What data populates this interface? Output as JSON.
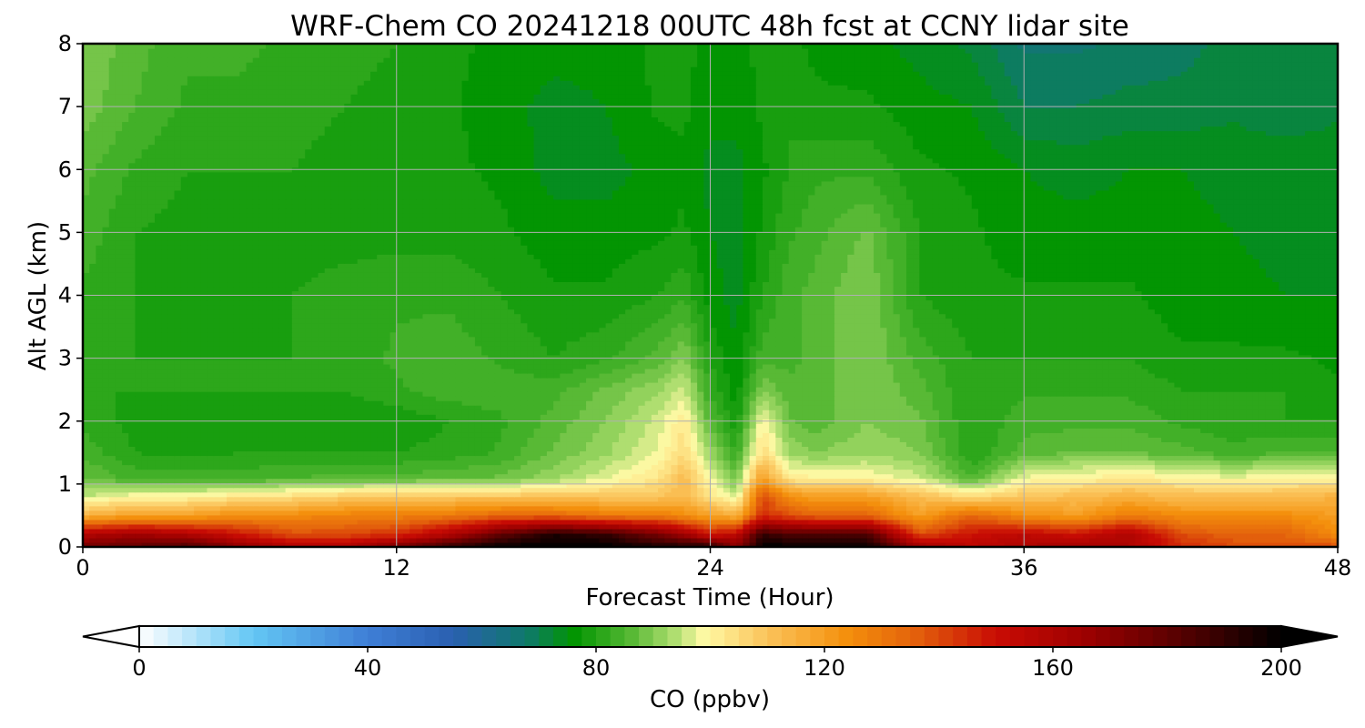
{
  "chart_data": {
    "type": "heatmap",
    "title": "WRF-Chem CO  20241218 00UTC 48h fcst at CCNY lidar site",
    "xlabel": "Forecast Time (Hour)",
    "ylabel": "Alt AGL (km)",
    "xlim": [
      0,
      48
    ],
    "ylim": [
      0,
      8
    ],
    "xticks": [
      0,
      12,
      24,
      36,
      48
    ],
    "yticks": [
      0,
      1,
      2,
      3,
      4,
      5,
      6,
      7,
      8
    ],
    "grid": true,
    "colorbar": {
      "label": "CO  (ppbv)",
      "range": [
        0,
        200
      ],
      "ticks": [
        0,
        40,
        80,
        120,
        160,
        200
      ],
      "extend": "both",
      "colormap_stops": [
        {
          "v": 0,
          "c": "#ffffff"
        },
        {
          "v": 20,
          "c": "#63c6f4"
        },
        {
          "v": 40,
          "c": "#3f7fd6"
        },
        {
          "v": 55,
          "c": "#2a5fb0"
        },
        {
          "v": 68,
          "c": "#0e7a6a"
        },
        {
          "v": 76,
          "c": "#019401"
        },
        {
          "v": 86,
          "c": "#55b833"
        },
        {
          "v": 94,
          "c": "#b2df72"
        },
        {
          "v": 99,
          "c": "#fff9a4"
        },
        {
          "v": 110,
          "c": "#fbc35a"
        },
        {
          "v": 124,
          "c": "#f48f0c"
        },
        {
          "v": 136,
          "c": "#e3610c"
        },
        {
          "v": 150,
          "c": "#c90c04"
        },
        {
          "v": 165,
          "c": "#a00101"
        },
        {
          "v": 185,
          "c": "#4a0101"
        },
        {
          "v": 200,
          "c": "#000000"
        }
      ]
    },
    "x": [
      0,
      2,
      4,
      6,
      8,
      10,
      12,
      14,
      16,
      18,
      20,
      22,
      23,
      24,
      25,
      26,
      27,
      28,
      30,
      32,
      34,
      36,
      38,
      40,
      42,
      44,
      46,
      48
    ],
    "y": [
      0,
      0.2,
      0.5,
      0.8,
      1.1,
      1.5,
      2,
      2.5,
      3,
      4,
      5,
      6,
      7,
      8
    ],
    "z": [
      [
        175,
        180,
        185,
        170,
        160,
        160,
        175,
        190,
        200,
        200,
        200,
        195,
        195,
        195,
        170,
        200,
        200,
        200,
        200,
        165,
        155,
        160,
        165,
        160,
        145,
        140,
        140,
        140
      ],
      [
        160,
        165,
        160,
        150,
        140,
        140,
        145,
        160,
        180,
        195,
        190,
        175,
        165,
        150,
        155,
        190,
        185,
        185,
        185,
        140,
        150,
        155,
        150,
        160,
        140,
        135,
        135,
        125
      ],
      [
        115,
        120,
        120,
        125,
        125,
        128,
        128,
        130,
        135,
        135,
        130,
        130,
        125,
        120,
        115,
        145,
        140,
        135,
        135,
        120,
        135,
        125,
        120,
        130,
        125,
        125,
        125,
        120
      ],
      [
        95,
        100,
        100,
        103,
        105,
        108,
        110,
        110,
        110,
        110,
        110,
        110,
        112,
        104,
        95,
        140,
        125,
        120,
        120,
        112,
        105,
        110,
        112,
        115,
        112,
        112,
        112,
        115
      ],
      [
        88,
        84,
        84,
        84,
        85,
        86,
        86,
        87,
        88,
        92,
        97,
        103,
        112,
        98,
        88,
        120,
        102,
        100,
        100,
        96,
        85,
        98,
        100,
        102,
        100,
        98,
        100,
        100
      ],
      [
        84,
        80,
        79,
        80,
        80,
        80,
        80,
        81,
        83,
        88,
        92,
        98,
        105,
        92,
        82,
        105,
        92,
        90,
        92,
        90,
        80,
        86,
        88,
        88,
        86,
        84,
        85,
        85
      ],
      [
        82,
        79,
        78,
        78,
        78,
        78,
        78,
        80,
        82,
        86,
        90,
        96,
        102,
        86,
        78,
        100,
        88,
        86,
        90,
        88,
        80,
        84,
        84,
        84,
        82,
        80,
        80,
        80
      ],
      [
        80,
        80,
        80,
        80,
        80,
        80,
        82,
        84,
        84,
        84,
        88,
        92,
        96,
        82,
        76,
        90,
        86,
        86,
        90,
        86,
        80,
        82,
        82,
        82,
        80,
        80,
        80,
        78
      ],
      [
        80,
        80,
        80,
        80,
        80,
        81,
        83,
        84,
        82,
        80,
        82,
        86,
        90,
        80,
        75,
        84,
        84,
        86,
        90,
        84,
        80,
        80,
        80,
        80,
        78,
        78,
        78,
        77
      ],
      [
        82,
        80,
        79,
        79,
        80,
        81,
        82,
        82,
        80,
        78,
        78,
        80,
        82,
        76,
        74,
        80,
        84,
        86,
        90,
        80,
        78,
        78,
        78,
        78,
        76,
        76,
        75,
        75
      ],
      [
        84,
        80,
        79,
        79,
        79,
        79,
        79,
        79,
        78,
        76,
        76,
        77,
        78,
        75,
        74,
        78,
        82,
        84,
        88,
        80,
        78,
        76,
        76,
        76,
        76,
        75,
        74,
        74
      ],
      [
        86,
        82,
        80,
        80,
        80,
        79,
        79,
        78,
        77,
        74,
        74,
        76,
        77,
        74,
        74,
        77,
        80,
        82,
        82,
        78,
        77,
        75,
        74,
        75,
        75,
        74,
        74,
        74
      ],
      [
        89,
        85,
        82,
        82,
        81,
        80,
        79,
        78,
        76,
        74,
        75,
        78,
        78,
        76,
        76,
        78,
        80,
        78,
        78,
        76,
        75,
        70,
        70,
        71,
        71,
        72,
        71,
        72
      ],
      [
        90,
        86,
        83,
        83,
        82,
        81,
        80,
        78,
        77,
        76,
        76,
        78,
        78,
        77,
        77,
        78,
        78,
        77,
        76,
        74,
        72,
        67,
        67,
        68,
        69,
        71,
        71,
        72
      ]
    ]
  }
}
